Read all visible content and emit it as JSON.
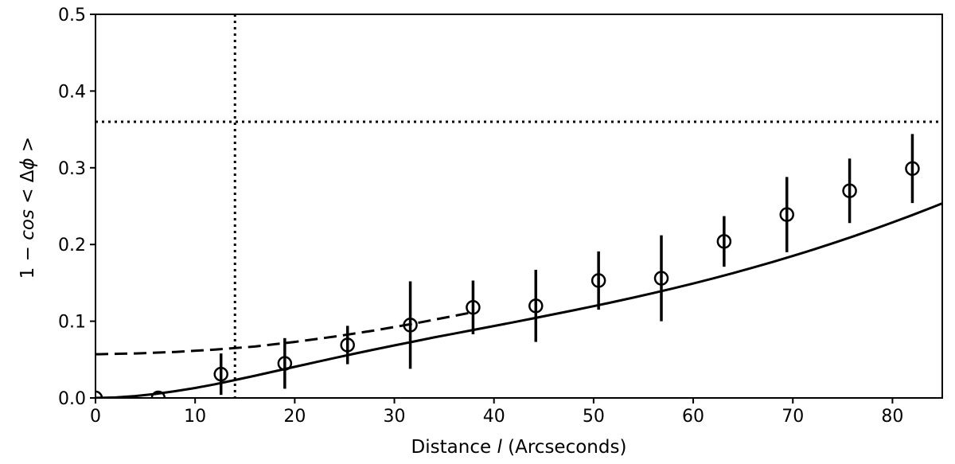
{
  "chart_data": {
    "type": "scatter",
    "xlabel_parts": [
      "Distance ",
      "l",
      " (Arcseconds)"
    ],
    "ylabel_parts": [
      "1 − ",
      "cos",
      " < Δ",
      "ϕ",
      " >"
    ],
    "xlim": [
      0,
      85
    ],
    "ylim": [
      0,
      0.5
    ],
    "x_ticks": [
      0,
      10,
      20,
      30,
      40,
      50,
      60,
      70,
      80
    ],
    "y_ticks": [
      0.0,
      0.1,
      0.2,
      0.3,
      0.4,
      0.5
    ],
    "x_tick_labels": [
      "0",
      "10",
      "20",
      "30",
      "40",
      "50",
      "60",
      "70",
      "80"
    ],
    "y_tick_labels": [
      "0.0",
      "0.1",
      "0.2",
      "0.3",
      "0.4",
      "0.5"
    ],
    "grid": false,
    "series": [
      {
        "style": "open-circle-markers-with-error-bars",
        "points": [
          {
            "x": 0.0,
            "y": 0.0,
            "err": 0.0
          },
          {
            "x": 6.3,
            "y": 0.0,
            "err": 0.0
          },
          {
            "x": 12.6,
            "y": 0.031,
            "err": 0.027
          },
          {
            "x": 19.0,
            "y": 0.045,
            "err": 0.033
          },
          {
            "x": 25.3,
            "y": 0.069,
            "err": 0.025
          },
          {
            "x": 31.6,
            "y": 0.095,
            "err": 0.057
          },
          {
            "x": 37.9,
            "y": 0.118,
            "err": 0.035
          },
          {
            "x": 44.2,
            "y": 0.12,
            "err": 0.047
          },
          {
            "x": 50.5,
            "y": 0.153,
            "err": 0.038
          },
          {
            "x": 56.8,
            "y": 0.156,
            "err": 0.056
          },
          {
            "x": 63.1,
            "y": 0.204,
            "err": 0.033
          },
          {
            "x": 69.4,
            "y": 0.239,
            "err": 0.049
          },
          {
            "x": 75.7,
            "y": 0.27,
            "err": 0.042
          },
          {
            "x": 82.0,
            "y": 0.299,
            "err": 0.045
          }
        ]
      },
      {
        "style": "solid-line",
        "x": [
          0,
          2,
          4,
          6,
          8,
          10,
          12,
          14,
          16,
          18,
          20,
          22,
          24,
          26,
          28,
          30,
          32,
          34,
          36,
          38,
          40,
          42,
          44,
          46,
          48,
          50,
          52,
          54,
          56,
          58,
          60,
          62,
          64,
          66,
          68,
          70,
          72,
          74,
          76,
          78,
          80,
          82,
          84,
          85
        ],
        "y": [
          0.0,
          0.0006,
          0.0025,
          0.0052,
          0.0088,
          0.013,
          0.0178,
          0.0233,
          0.0289,
          0.0347,
          0.0406,
          0.0464,
          0.0521,
          0.0577,
          0.0632,
          0.0685,
          0.0737,
          0.0789,
          0.0838,
          0.0888,
          0.0938,
          0.0988,
          0.1038,
          0.109,
          0.1142,
          0.1196,
          0.1251,
          0.1308,
          0.1367,
          0.1428,
          0.1492,
          0.1558,
          0.1627,
          0.1699,
          0.1773,
          0.1851,
          0.1932,
          0.2016,
          0.2103,
          0.2193,
          0.2287,
          0.2384,
          0.2484,
          0.2536
        ]
      },
      {
        "style": "dashed-line",
        "x": [
          0,
          4,
          8,
          12,
          16,
          20,
          24,
          28,
          32,
          36,
          38
        ],
        "y": [
          0.057,
          0.058,
          0.06,
          0.063,
          0.067,
          0.073,
          0.08,
          0.088,
          0.097,
          0.107,
          0.112
        ]
      }
    ],
    "reference_lines": [
      {
        "orientation": "vertical",
        "x": 14.0,
        "style": "dotted"
      },
      {
        "orientation": "horizontal",
        "y": 0.36,
        "style": "dotted"
      }
    ],
    "colors": {
      "ink": "#000000",
      "background": "#ffffff"
    }
  }
}
